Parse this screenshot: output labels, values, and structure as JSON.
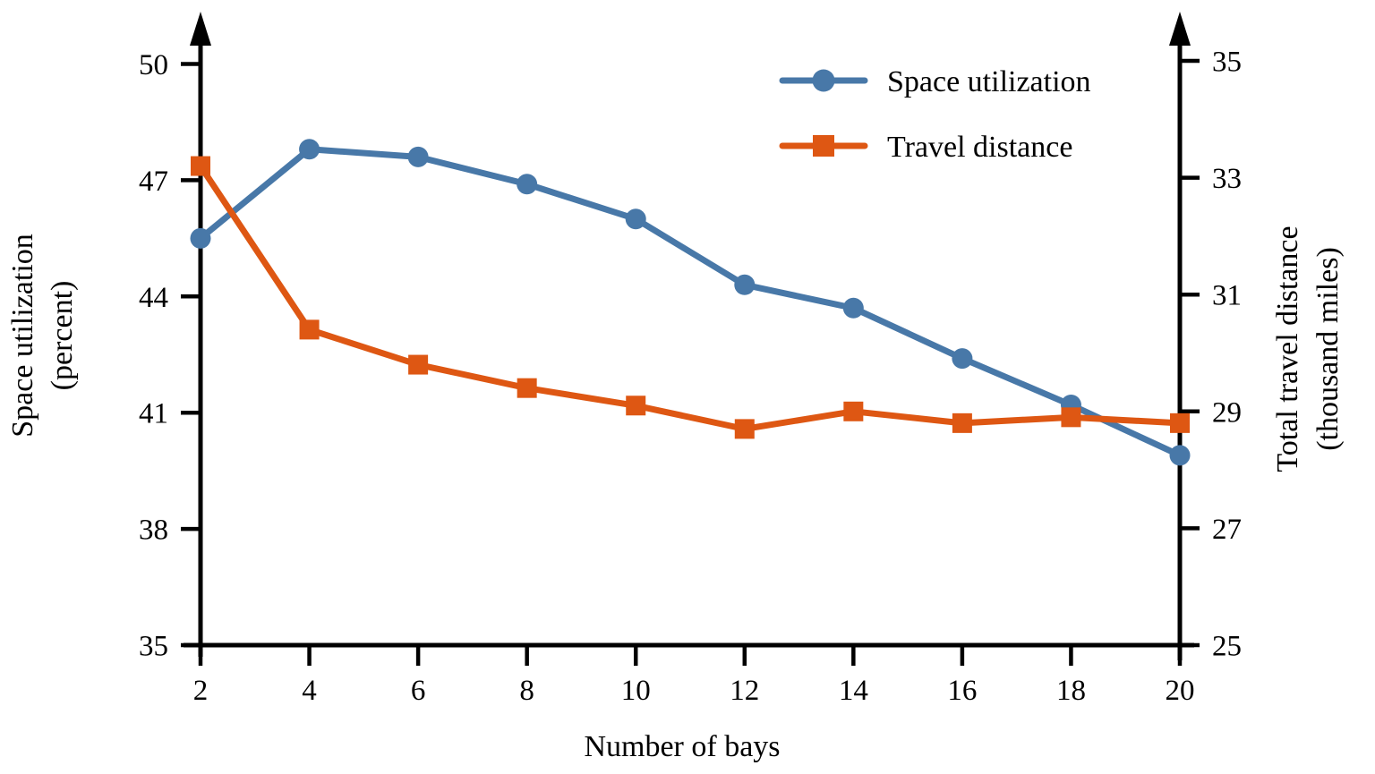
{
  "figure": {
    "background": "#ffffff",
    "text_color": "#000000",
    "axis_color": "#000000"
  },
  "chart_data": {
    "type": "line",
    "x": [
      2,
      4,
      6,
      8,
      10,
      12,
      14,
      16,
      18,
      20
    ],
    "x_tick_labels": [
      "2",
      "4",
      "6",
      "8",
      "10",
      "12",
      "14",
      "16",
      "18",
      "20"
    ],
    "xlabel": "Number of bays",
    "grid": false,
    "left_axis": {
      "title_line1": "Space utilization",
      "title_line2": "(percent)",
      "ticks": [
        50,
        47,
        44,
        41,
        38,
        35
      ],
      "range": [
        35,
        50
      ],
      "arrow": true
    },
    "right_axis": {
      "title_line1": "Total travel distance",
      "title_line2": "(thousand miles)",
      "ticks": [
        35,
        33,
        31,
        29,
        27,
        25
      ],
      "range": [
        25,
        35
      ],
      "arrow": true
    },
    "series": [
      {
        "name": "Space utilization",
        "axis": "left",
        "marker": "circle",
        "color": "#4878a8",
        "values": [
          45.5,
          47.8,
          47.6,
          46.9,
          46.0,
          44.3,
          43.7,
          42.4,
          41.2,
          39.9
        ]
      },
      {
        "name": "Travel distance",
        "axis": "right",
        "marker": "square",
        "color": "#de5713",
        "values": [
          33.2,
          30.4,
          29.8,
          29.4,
          29.1,
          28.7,
          29.0,
          28.8,
          28.9,
          28.8
        ]
      }
    ],
    "legend": {
      "position": "top-right",
      "entries": [
        "Space utilization",
        "Travel distance"
      ]
    }
  }
}
